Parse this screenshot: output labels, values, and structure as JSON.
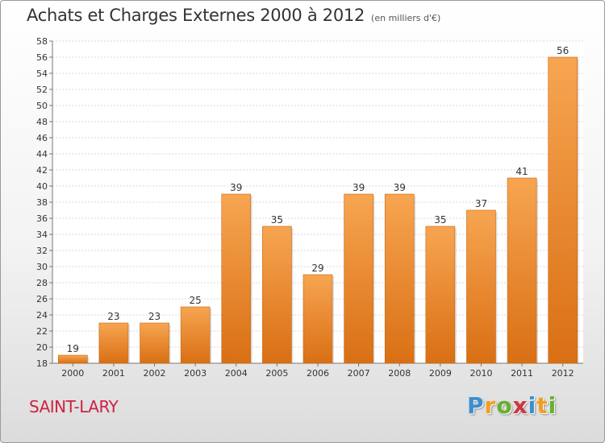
{
  "chart_data": {
    "type": "bar",
    "title": "Achats et Charges Externes 2000 à 2012",
    "subtitle": "(en milliers d'€)",
    "categories": [
      "2000",
      "2001",
      "2002",
      "2003",
      "2004",
      "2005",
      "2006",
      "2007",
      "2008",
      "2009",
      "2010",
      "2011",
      "2012"
    ],
    "values": [
      19,
      23,
      23,
      25,
      39,
      35,
      29,
      39,
      39,
      35,
      37,
      41,
      56
    ],
    "ylim": [
      18,
      58
    ],
    "yticks": [
      18,
      20,
      22,
      24,
      26,
      28,
      30,
      32,
      34,
      36,
      38,
      40,
      42,
      44,
      46,
      48,
      50,
      52,
      54,
      56,
      58
    ],
    "grid": true,
    "bar_color": "#f08a2c"
  },
  "footer": {
    "city": "SAINT-LARY",
    "logo_letters": [
      {
        "ch": "P",
        "color": "#3b8fd0"
      },
      {
        "ch": "r",
        "color": "#f0a020"
      },
      {
        "ch": "o",
        "color": "#66b030"
      },
      {
        "ch": "x",
        "color": "#d0343c"
      },
      {
        "ch": "i",
        "color": "#3b8fd0"
      },
      {
        "ch": "t",
        "color": "#f0a020"
      },
      {
        "ch": "i",
        "color": "#66b030"
      }
    ]
  }
}
